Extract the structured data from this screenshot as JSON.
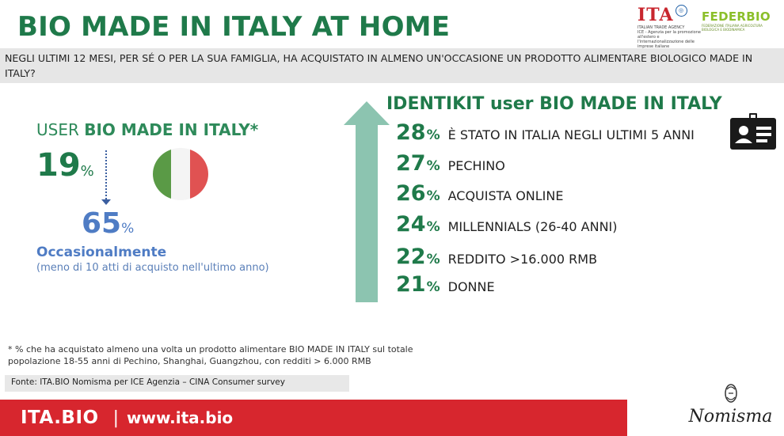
{
  "header": {
    "title": "BIO MADE IN ITALY AT HOME",
    "logo_ita": {
      "word": "ITA",
      "line1": "ITALIAN TRADE AGENCY",
      "line2": "ICE - Agenzia per la promozione all'estero e l'internazionalizzazione delle imprese italiane"
    },
    "logo_federbio": {
      "word": "FEDERBIO",
      "tagline": "FEDERAZIONE ITALIANA AGRICOLTURA BIOLOGICA E BIODINAMICA"
    }
  },
  "question": "NEGLI ULTIMI 12 MESI, PER SÉ O PER LA SUA FAMIGLIA, HA ACQUISTATO IN ALMENO UN'OCCASIONE UN PRODOTTO ALIMENTARE BIOLOGICO MADE IN ITALY?",
  "left_panel": {
    "heading_prefix": "USER ",
    "heading_bold": "BIO MADE IN ITALY*",
    "main_value": "19",
    "main_unit": "%",
    "sub_value": "65",
    "sub_unit": "%",
    "sub_label": "Occasionalmente",
    "sub_note": "(meno di 10 atti di acquisto nell'ultimo anno)",
    "flag_colors": [
      "#5a9a46",
      "#f4f4f4",
      "#e05252"
    ]
  },
  "identikit": {
    "title": "IDENTIKIT user BIO MADE IN ITALY",
    "icon": "id-card-icon",
    "stats": [
      {
        "value": "28",
        "unit": "%",
        "label": "È STATO IN ITALIA NEGLI ULTIMI 5 ANNI"
      },
      {
        "value": "27",
        "unit": "%",
        "label": "PECHINO"
      },
      {
        "value": "26",
        "unit": "%",
        "label": "ACQUISTA ONLINE"
      },
      {
        "value": "24",
        "unit": "%",
        "label": "MILLENNIALS (26-40 ANNI)"
      },
      {
        "value": "22",
        "unit": "%",
        "label": "REDDITO >16.000 RMB"
      },
      {
        "value": "21",
        "unit": "%",
        "label": "DONNE"
      }
    ]
  },
  "footnote": "* % che ha acquistato almeno una volta un prodotto alimentare BIO MADE IN ITALY sul totale popolazione 18-55 anni di Pechino, Shanghai, Guangzhou, con redditi > 6.000 RMB",
  "source": "Fonte: ITA.BIO Nomisma per ICE Agenzia – CINA Consumer survey",
  "footer": {
    "brand": "ITA.BIO",
    "separator": "|",
    "url": "www.ita.bio",
    "logo_nomisma": "Nomisma"
  },
  "colors": {
    "green": "#1f7a4a",
    "blue": "#4f7cc4",
    "arrow": "#8cc4b0",
    "footer_red": "#d7262e"
  }
}
